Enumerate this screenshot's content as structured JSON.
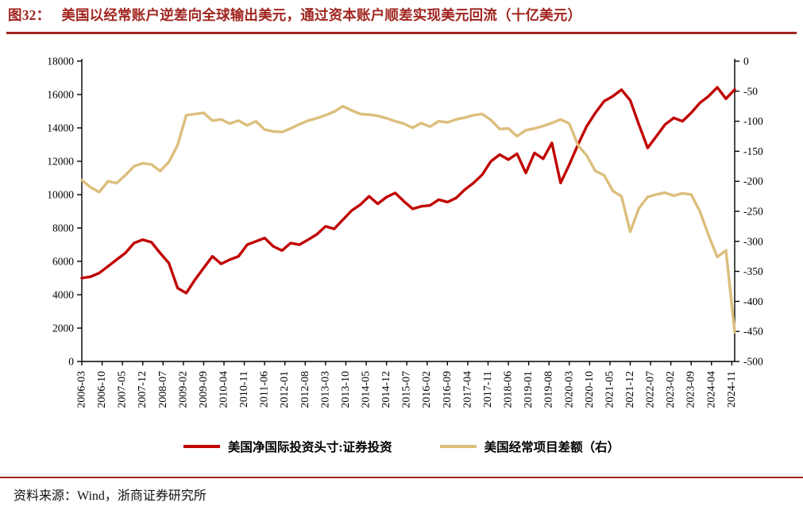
{
  "title": {
    "prefix": "图32：",
    "text": "美国以经常账户逆差向全球输出美元，通过资本账户顺差实现美元回流（十亿美元）"
  },
  "footer": {
    "source": "资料来源：Wind，浙商证券研究所"
  },
  "colors": {
    "accent_red": "#A0251F",
    "series_red": "#C00000",
    "series_tan": "#DCBE7C",
    "axis_black": "#000000"
  },
  "chart_data": {
    "type": "line",
    "title": "美国以经常账户逆差向全球输出美元，通过资本账户顺差实现美元回流（十亿美元）",
    "x_start": "2006-03",
    "x_end": "2024-12",
    "x_frequency": "quarterly",
    "grid": false,
    "legend_position": "bottom",
    "x_labels": [
      "2006-03",
      "2006-10",
      "2007-05",
      "2007-12",
      "2008-07",
      "2009-02",
      "2009-09",
      "2010-04",
      "2010-11",
      "2011-06",
      "2012-01",
      "2012-08",
      "2013-03",
      "2013-10",
      "2014-05",
      "2014-12",
      "2015-07",
      "2016-02",
      "2016-09",
      "2017-04",
      "2017-11",
      "2018-06",
      "2019-01",
      "2019-08",
      "2020-03",
      "2020-10",
      "2021-05",
      "2021-12",
      "2022-07",
      "2023-02",
      "2023-09",
      "2024-04",
      "2024-11"
    ],
    "left_axis": {
      "min": 0,
      "max": 18000,
      "ticks": [
        18000,
        16000,
        14000,
        12000,
        10000,
        8000,
        6000,
        4000,
        2000,
        0
      ]
    },
    "right_axis": {
      "min": -500,
      "max": 0,
      "ticks": [
        0,
        -50,
        -100,
        -150,
        -200,
        -250,
        -300,
        -350,
        -400,
        -450,
        -500
      ]
    },
    "series": [
      {
        "name": "美国净国际投资头寸:证券投资",
        "axis": "left",
        "color": "#C00000",
        "values": [
          5000,
          5080,
          5300,
          5700,
          6100,
          6500,
          7100,
          7300,
          7150,
          6500,
          5900,
          4400,
          4100,
          4900,
          5600,
          6300,
          5850,
          6100,
          6300,
          7000,
          7200,
          7400,
          6900,
          6650,
          7100,
          7000,
          7300,
          7620,
          8100,
          7950,
          8500,
          9050,
          9400,
          9900,
          9450,
          9850,
          10100,
          9600,
          9150,
          9300,
          9350,
          9700,
          9550,
          9800,
          10300,
          10700,
          11200,
          12000,
          12400,
          12100,
          12450,
          11300,
          12500,
          12150,
          13100,
          10700,
          11800,
          13000,
          14100,
          14900,
          15600,
          15900,
          16290,
          15650,
          14200,
          12800,
          13500,
          14200,
          14600,
          14400,
          14900,
          15500,
          15900,
          16430,
          15750,
          16300
        ]
      },
      {
        "name": "美国经常项目差额（右）",
        "axis": "right",
        "color": "#DCBE7C",
        "values": [
          -198,
          -210,
          -218,
          -200,
          -203,
          -190,
          -175,
          -170,
          -172,
          -183,
          -168,
          -140,
          -90,
          -88,
          -86,
          -99,
          -97,
          -104,
          -99,
          -107,
          -100,
          -114,
          -117,
          -118,
          -112,
          -105,
          -99,
          -95,
          -90,
          -84,
          -75,
          -82,
          -88,
          -89,
          -91,
          -95,
          -100,
          -104,
          -111,
          -103,
          -109,
          -100,
          -102,
          -97,
          -94,
          -90,
          -88,
          -98,
          -113,
          -112,
          -125,
          -115,
          -112,
          -108,
          -103,
          -97,
          -104,
          -140,
          -157,
          -183,
          -190,
          -216,
          -225,
          -284,
          -245,
          -226,
          -222,
          -219,
          -224,
          -220,
          -222,
          -250,
          -290,
          -326,
          -315,
          -451
        ]
      }
    ]
  }
}
